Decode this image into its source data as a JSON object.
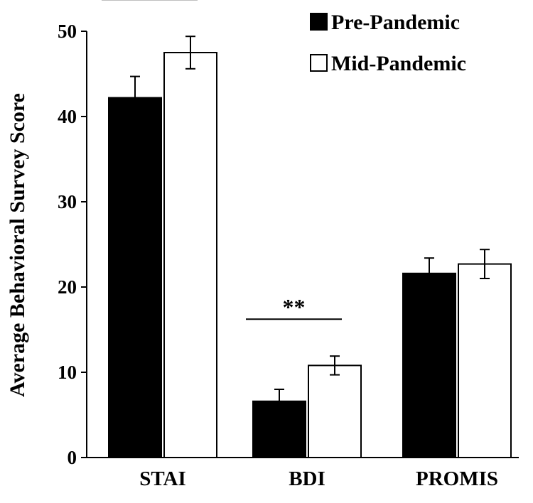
{
  "chart_data": {
    "type": "bar",
    "ylabel": "Average Behavioral Survey Score",
    "xlabel": "",
    "ylim": [
      0,
      50
    ],
    "yticks": [
      0,
      10,
      20,
      30,
      40,
      50
    ],
    "ytick_labels": [
      "0",
      "10",
      "20",
      "30",
      "40",
      "50"
    ],
    "grid": false,
    "legend_position": "top-right",
    "categories": [
      "STAI",
      "BDI",
      "PROMIS"
    ],
    "series": [
      {
        "name": "Pre-Pandemic",
        "color": "#000000",
        "values": [
          42.2,
          6.6,
          21.6
        ],
        "errors": [
          2.5,
          1.4,
          1.8
        ]
      },
      {
        "name": "Mid-Pandemic",
        "color": "#ffffff",
        "values": [
          47.5,
          10.8,
          22.7
        ],
        "errors": [
          1.9,
          1.1,
          1.7
        ]
      }
    ],
    "significance": [
      {
        "category": "STAI",
        "label": "*"
      },
      {
        "category": "BDI",
        "label": "**"
      }
    ]
  }
}
